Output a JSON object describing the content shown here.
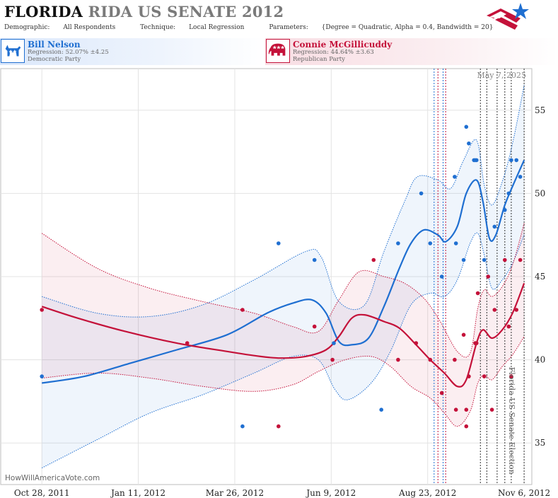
{
  "header": {
    "title_state": "FLORIDA",
    "title_rest": "RIDA US SENATE 2012",
    "demographic_label": "Demographic:",
    "demographic_value": "All Respondents",
    "technique_label": "Technique:",
    "technique_value": "Local Regression",
    "parameters_label": "Parameters:",
    "parameters_value": "{Degree = Quadratic, Alpha = 0.4, Bandwidth = 20}"
  },
  "candidates": [
    {
      "name": "Bill Nelson",
      "regression": "Regression: 52.07% ±4.25",
      "party": "Democratic Party",
      "color": "#1f6fd1"
    },
    {
      "name": "Connie McGillicuddy",
      "regression": "Regression: 44.64% ±3.63",
      "party": "Republican Party",
      "color": "#c4123a"
    }
  ],
  "chart_data": {
    "type": "scatter",
    "x_type": "date",
    "xlim": [
      "2011-09-26",
      "2012-11-12"
    ],
    "ylim": [
      32.5,
      57.5
    ],
    "y_ticks": [
      35,
      40,
      45,
      50,
      55
    ],
    "x_ticks": [
      "2011-10-28",
      "2012-01-11",
      "2012-03-26",
      "2012-06-09",
      "2012-08-23",
      "2012-11-06"
    ],
    "x_tick_labels": [
      "Oct 28, 2011",
      "Jan 11, 2012",
      "Mar 26, 2012",
      "Jun 9, 2012",
      "Aug 23, 2012",
      "Nov 6, 2012"
    ],
    "y_axis_side": "right",
    "date_label": "May 7, 2025",
    "event_label": "Florida US Senate Election",
    "watermark": "HowWillAmericaVote.com",
    "event_lines": [
      {
        "date": "2012-08-28",
        "color": "#1f6fd1"
      },
      {
        "date": "2012-08-31",
        "color": "#c4123a"
      },
      {
        "date": "2012-09-04",
        "color": "#1f6fd1"
      },
      {
        "date": "2012-09-06",
        "color": "#c4123a"
      },
      {
        "date": "2012-10-03",
        "color": "#333333"
      },
      {
        "date": "2012-10-08",
        "color": "#333333"
      },
      {
        "date": "2012-10-16",
        "color": "#333333"
      },
      {
        "date": "2012-10-22",
        "color": "#333333"
      },
      {
        "date": "2012-10-27",
        "color": "#333333"
      },
      {
        "date": "2012-11-06",
        "color": "#333333"
      }
    ],
    "series": [
      {
        "name": "Bill Nelson",
        "color": "#1f6fd1",
        "points": [
          [
            "2011-10-28",
            39.0
          ],
          [
            "2012-04-01",
            36.0
          ],
          [
            "2012-04-29",
            47.0
          ],
          [
            "2012-05-27",
            46.0
          ],
          [
            "2012-06-11",
            41.0
          ],
          [
            "2012-07-18",
            37.0
          ],
          [
            "2012-07-31",
            47.0
          ],
          [
            "2012-08-18",
            50.0
          ],
          [
            "2012-08-25",
            47.0
          ],
          [
            "2012-09-03",
            45.0
          ],
          [
            "2012-09-13",
            51.0
          ],
          [
            "2012-09-14",
            47.0
          ],
          [
            "2012-09-20",
            46.0
          ],
          [
            "2012-09-22",
            54.0
          ],
          [
            "2012-09-24",
            53.0
          ],
          [
            "2012-09-28",
            52.0
          ],
          [
            "2012-09-29",
            52.0
          ],
          [
            "2012-09-30",
            52.0
          ],
          [
            "2012-10-06",
            46.0
          ],
          [
            "2012-10-09",
            45.0
          ],
          [
            "2012-10-14",
            48.0
          ],
          [
            "2012-10-22",
            49.0
          ],
          [
            "2012-10-25",
            50.0
          ],
          [
            "2012-10-27",
            52.0
          ],
          [
            "2012-10-31",
            52.0
          ],
          [
            "2012-11-03",
            51.0
          ]
        ],
        "trend": [
          [
            "2011-10-28",
            38.6
          ],
          [
            "2011-11-30",
            39.0
          ],
          [
            "2012-01-05",
            39.8
          ],
          [
            "2012-02-10",
            40.6
          ],
          [
            "2012-03-20",
            41.5
          ],
          [
            "2012-04-20",
            42.8
          ],
          [
            "2012-05-10",
            43.4
          ],
          [
            "2012-05-25",
            43.6
          ],
          [
            "2012-06-05",
            42.8
          ],
          [
            "2012-06-15",
            41.1
          ],
          [
            "2012-06-25",
            40.9
          ],
          [
            "2012-07-08",
            41.3
          ],
          [
            "2012-07-20",
            43.2
          ],
          [
            "2012-08-01",
            45.5
          ],
          [
            "2012-08-10",
            47.0
          ],
          [
            "2012-08-20",
            47.8
          ],
          [
            "2012-08-31",
            47.5
          ],
          [
            "2012-09-06",
            47.1
          ],
          [
            "2012-09-15",
            48.0
          ],
          [
            "2012-09-22",
            50.0
          ],
          [
            "2012-09-30",
            50.8
          ],
          [
            "2012-10-05",
            49.5
          ],
          [
            "2012-10-10",
            47.3
          ],
          [
            "2012-10-15",
            47.5
          ],
          [
            "2012-10-22",
            49.3
          ],
          [
            "2012-10-29",
            50.6
          ],
          [
            "2012-11-06",
            52.0
          ]
        ],
        "upper": [
          [
            "2011-10-28",
            43.8
          ],
          [
            "2011-12-10",
            42.8
          ],
          [
            "2012-01-20",
            42.6
          ],
          [
            "2012-03-01",
            43.3
          ],
          [
            "2012-04-10",
            44.8
          ],
          [
            "2012-05-20",
            46.5
          ],
          [
            "2012-06-01",
            46.2
          ],
          [
            "2012-06-15",
            43.5
          ],
          [
            "2012-07-05",
            43.3
          ],
          [
            "2012-07-20",
            46.5
          ],
          [
            "2012-08-05",
            49.5
          ],
          [
            "2012-08-15",
            51.0
          ],
          [
            "2012-08-31",
            50.8
          ],
          [
            "2012-09-10",
            50.3
          ],
          [
            "2012-09-20",
            52.0
          ],
          [
            "2012-09-30",
            53.2
          ],
          [
            "2012-10-06",
            50.5
          ],
          [
            "2012-10-12",
            49.3
          ],
          [
            "2012-10-20",
            50.7
          ],
          [
            "2012-10-28",
            53.0
          ],
          [
            "2012-11-06",
            56.5
          ]
        ],
        "lower": [
          [
            "2011-10-28",
            33.5
          ],
          [
            "2011-12-10",
            35.2
          ],
          [
            "2012-01-20",
            36.8
          ],
          [
            "2012-03-01",
            37.9
          ],
          [
            "2012-04-10",
            39.2
          ],
          [
            "2012-05-10",
            40.2
          ],
          [
            "2012-05-30",
            40.0
          ],
          [
            "2012-06-12",
            38.2
          ],
          [
            "2012-06-22",
            37.6
          ],
          [
            "2012-07-10",
            38.6
          ],
          [
            "2012-07-25",
            40.5
          ],
          [
            "2012-08-10",
            43.3
          ],
          [
            "2012-08-25",
            44.0
          ],
          [
            "2012-09-05",
            43.8
          ],
          [
            "2012-09-15",
            44.8
          ],
          [
            "2012-09-25",
            47.0
          ],
          [
            "2012-10-01",
            47.6
          ],
          [
            "2012-10-06",
            46.3
          ],
          [
            "2012-10-12",
            44.3
          ],
          [
            "2012-10-20",
            44.8
          ],
          [
            "2012-10-28",
            45.8
          ],
          [
            "2012-11-06",
            47.5
          ]
        ]
      },
      {
        "name": "Connie McGillicuddy",
        "color": "#c4123a",
        "points": [
          [
            "2011-10-28",
            43.0
          ],
          [
            "2012-02-18",
            41.0
          ],
          [
            "2012-04-01",
            43.0
          ],
          [
            "2012-04-29",
            36.0
          ],
          [
            "2012-05-27",
            42.0
          ],
          [
            "2012-06-10",
            40.0
          ],
          [
            "2012-07-12",
            46.0
          ],
          [
            "2012-07-31",
            40.0
          ],
          [
            "2012-08-14",
            41.0
          ],
          [
            "2012-08-25",
            40.0
          ],
          [
            "2012-09-03",
            38.0
          ],
          [
            "2012-09-13",
            40.0
          ],
          [
            "2012-09-14",
            37.0
          ],
          [
            "2012-09-20",
            41.5
          ],
          [
            "2012-09-22",
            37.0
          ],
          [
            "2012-09-22",
            36.0
          ],
          [
            "2012-09-24",
            39.0
          ],
          [
            "2012-09-29",
            41.0
          ],
          [
            "2012-09-30",
            41.0
          ],
          [
            "2012-10-01",
            44.0
          ],
          [
            "2012-10-06",
            39.0
          ],
          [
            "2012-10-09",
            45.0
          ],
          [
            "2012-10-12",
            37.0
          ],
          [
            "2012-10-14",
            43.0
          ],
          [
            "2012-10-22",
            46.0
          ],
          [
            "2012-10-25",
            42.0
          ],
          [
            "2012-10-27",
            39.0
          ],
          [
            "2012-10-31",
            43.0
          ],
          [
            "2012-11-03",
            46.0
          ]
        ],
        "trend": [
          [
            "2011-10-28",
            43.2
          ],
          [
            "2011-11-25",
            42.5
          ],
          [
            "2012-01-01",
            41.7
          ],
          [
            "2012-02-10",
            41.0
          ],
          [
            "2012-03-20",
            40.5
          ],
          [
            "2012-04-15",
            40.2
          ],
          [
            "2012-05-01",
            40.1
          ],
          [
            "2012-05-20",
            40.2
          ],
          [
            "2012-06-05",
            40.6
          ],
          [
            "2012-06-15",
            41.4
          ],
          [
            "2012-06-25",
            42.5
          ],
          [
            "2012-07-05",
            42.7
          ],
          [
            "2012-07-20",
            42.3
          ],
          [
            "2012-08-01",
            41.9
          ],
          [
            "2012-08-14",
            40.9
          ],
          [
            "2012-08-25",
            40.0
          ],
          [
            "2012-09-05",
            39.2
          ],
          [
            "2012-09-15",
            38.4
          ],
          [
            "2012-09-22",
            38.8
          ],
          [
            "2012-09-30",
            41.0
          ],
          [
            "2012-10-05",
            41.8
          ],
          [
            "2012-10-12",
            41.3
          ],
          [
            "2012-10-20",
            41.8
          ],
          [
            "2012-10-28",
            42.8
          ],
          [
            "2012-11-06",
            44.6
          ]
        ],
        "upper": [
          [
            "2011-10-28",
            47.6
          ],
          [
            "2011-12-10",
            45.5
          ],
          [
            "2012-01-20",
            44.3
          ],
          [
            "2012-03-01",
            43.5
          ],
          [
            "2012-04-10",
            42.8
          ],
          [
            "2012-05-10",
            42.0
          ],
          [
            "2012-05-30",
            41.7
          ],
          [
            "2012-06-15",
            43.6
          ],
          [
            "2012-07-01",
            45.3
          ],
          [
            "2012-07-20",
            45.0
          ],
          [
            "2012-08-05",
            44.6
          ],
          [
            "2012-08-20",
            43.7
          ],
          [
            "2012-09-01",
            42.4
          ],
          [
            "2012-09-15",
            40.5
          ],
          [
            "2012-09-25",
            40.4
          ],
          [
            "2012-10-01",
            43.1
          ],
          [
            "2012-10-06",
            44.2
          ],
          [
            "2012-10-12",
            43.8
          ],
          [
            "2012-10-20",
            44.4
          ],
          [
            "2012-10-28",
            45.7
          ],
          [
            "2012-11-06",
            48.2
          ]
        ],
        "lower": [
          [
            "2011-10-28",
            38.9
          ],
          [
            "2011-12-10",
            39.2
          ],
          [
            "2012-01-20",
            38.9
          ],
          [
            "2012-03-01",
            38.4
          ],
          [
            "2012-04-10",
            38.1
          ],
          [
            "2012-05-10",
            38.5
          ],
          [
            "2012-05-30",
            39.3
          ],
          [
            "2012-06-20",
            40.0
          ],
          [
            "2012-07-10",
            40.2
          ],
          [
            "2012-07-25",
            39.6
          ],
          [
            "2012-08-10",
            38.4
          ],
          [
            "2012-08-25",
            37.7
          ],
          [
            "2012-09-05",
            36.8
          ],
          [
            "2012-09-15",
            36.0
          ],
          [
            "2012-09-25",
            36.9
          ],
          [
            "2012-10-01",
            38.6
          ],
          [
            "2012-10-06",
            39.1
          ],
          [
            "2012-10-12",
            38.8
          ],
          [
            "2012-10-20",
            39.6
          ],
          [
            "2012-10-28",
            40.3
          ],
          [
            "2012-11-06",
            41.4
          ]
        ]
      }
    ]
  }
}
